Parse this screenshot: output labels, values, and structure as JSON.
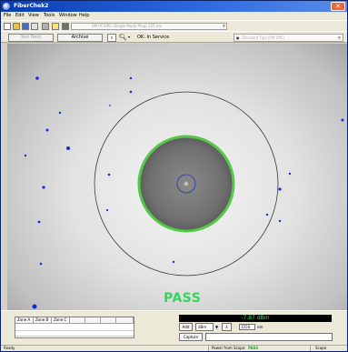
{
  "window": {
    "title": "FiberChek2"
  },
  "menu": [
    "File",
    "Edit",
    "View",
    "Tools",
    "Window",
    "Help"
  ],
  "toolbar": {
    "icons": [
      "new-icon",
      "open-icon",
      "save-icon",
      "copy-icon",
      "print-icon",
      "help-icon",
      "arrow-icon"
    ],
    "profile_select": "SM PC/UPC (Single Mode Plug) 125 um"
  },
  "toolbar2": {
    "test_next_button": "Test Next",
    "archive_button": "Archive",
    "zoom_icon": "magnifier-icon",
    "status_text": "OK: In Service",
    "standard_select": "Standard Tips (SM UPC)"
  },
  "result": {
    "pass_text": "PASS"
  },
  "zones_table": {
    "headers": [
      "Zone A",
      "Zone B",
      "Zone C",
      "",
      "",
      "",
      ""
    ]
  },
  "power": {
    "reading": "-7.87 dBm",
    "add_button": "Add",
    "unit": "dBm",
    "lambda_button": "λ",
    "wavelength": "1550",
    "wavelength_unit": "nm",
    "capture_button": "Capture"
  },
  "statusbar": {
    "ready": "Ready",
    "power_label": "Power from Scope:",
    "power_value": "PASS",
    "scope_label": "Scope"
  },
  "colors": {
    "pass_green": "#33d65b",
    "defect_blue": "#1a2bd9",
    "zone_ring_green": "#55c84a",
    "title_blue": "#0a3cb0"
  }
}
